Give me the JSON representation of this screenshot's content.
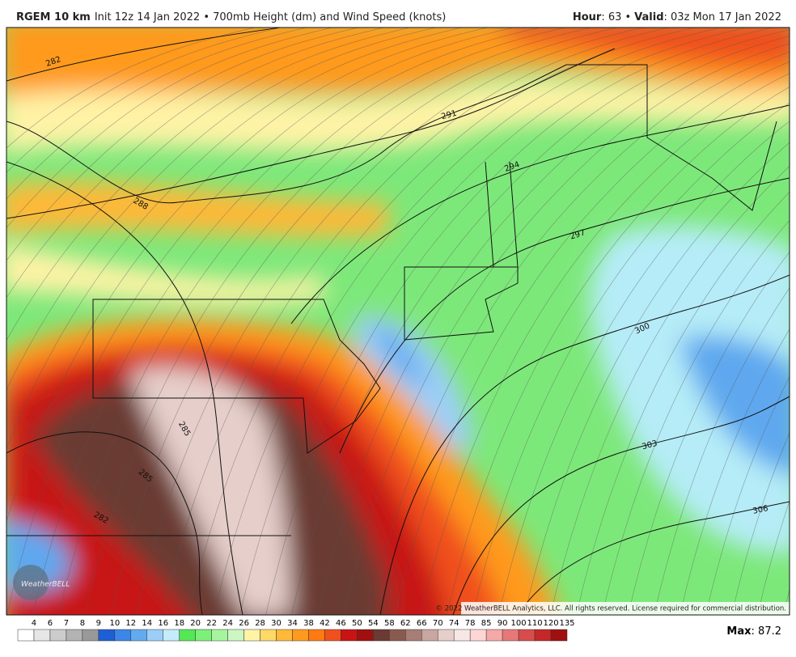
{
  "header": {
    "model": "RGEM 10 km",
    "init": "Init 12z 14 Jan 2022 • 700mb Height (dm) and Wind Speed (knots)",
    "hour_label": "Hour",
    "hour_value": ": 63 •",
    "valid_label": "Valid",
    "valid_value": ": 03z Mon 17 Jan 2022"
  },
  "map": {
    "contour_labels": [
      "282",
      "291",
      "294",
      "297",
      "300",
      "303",
      "306",
      "288",
      "285",
      "285",
      "282"
    ],
    "copyright": "© 2022 WeatherBELL Analytics, LLC. All rights reserved. License required for commercial distribution.",
    "logo": "WeatherBELL"
  },
  "legend": {
    "labels": [
      "4",
      "6",
      "7",
      "8",
      "9",
      "10",
      "12",
      "14",
      "16",
      "18",
      "20",
      "22",
      "24",
      "26",
      "28",
      "30",
      "34",
      "38",
      "42",
      "46",
      "50",
      "54",
      "58",
      "62",
      "66",
      "70",
      "74",
      "78",
      "85",
      "90",
      "100",
      "110",
      "120",
      "135"
    ],
    "colors": [
      "#ffffff",
      "#e6e6e6",
      "#cccccc",
      "#b3b3b3",
      "#999999",
      "#1e5fd6",
      "#3c86e8",
      "#64aaf0",
      "#9ccff7",
      "#c4ecfa",
      "#54e854",
      "#7df07a",
      "#a6f59e",
      "#ccf7c2",
      "#fff3a6",
      "#ffd966",
      "#ffb838",
      "#ff9a1f",
      "#ff7a12",
      "#f0501e",
      "#c81414",
      "#a01010",
      "#6b3a33",
      "#8a5a50",
      "#a87d75",
      "#c9a6a0",
      "#e6cfcb",
      "#f7e8e6",
      "#ffd6d6",
      "#f5a8a8",
      "#e87878",
      "#d84c4c",
      "#c42828",
      "#a01010"
    ],
    "max_label": "Max",
    "max_value": ": 87.2"
  }
}
